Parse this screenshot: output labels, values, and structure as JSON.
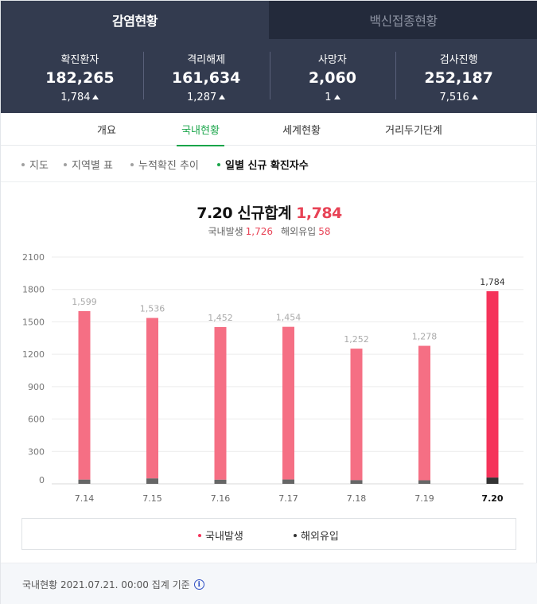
{
  "tabs": {
    "infection": "감염현황",
    "vaccine": "백신접종현황"
  },
  "stats": [
    {
      "label": "확진환자",
      "value": "182,265",
      "change": "1,784"
    },
    {
      "label": "격리해제",
      "value": "161,634",
      "change": "1,287"
    },
    {
      "label": "사망자",
      "value": "2,060",
      "change": "1"
    },
    {
      "label": "검사진행",
      "value": "252,187",
      "change": "7,516"
    }
  ],
  "subtabs": [
    "개요",
    "국내현황",
    "세계현황",
    "거리두기단계"
  ],
  "filters": [
    "지도",
    "지역별 표",
    "누적확진 추이",
    "일별 신규 확진자수"
  ],
  "summary": {
    "date": "7.20",
    "label": "신규합계",
    "total": "1,784",
    "domestic_label": "국내발생",
    "domestic": "1,726",
    "imported_label": "해외유입",
    "imported": "58"
  },
  "legend": {
    "domestic": "국내발생",
    "imported": "해외유입"
  },
  "footer": {
    "text": "국내현황 2021.07.21. 00:00 집계 기준",
    "info_icon": "i"
  },
  "colors": {
    "header_bg": "#333b4f",
    "accent_green": "#1aa54a",
    "domestic_bar": "#f56f84",
    "domestic_bar_latest": "#f5335a",
    "imported_bar": "#666666",
    "imported_bar_latest": "#333333",
    "highlight_red": "#e84356"
  },
  "chart_data": {
    "type": "bar",
    "stacked": true,
    "categories": [
      "7.14",
      "7.15",
      "7.16",
      "7.17",
      "7.18",
      "7.19",
      "7.20"
    ],
    "totals": [
      1599,
      1536,
      1452,
      1454,
      1252,
      1278,
      1784
    ],
    "series": [
      {
        "name": "국내발생",
        "values": [
          1560,
          1486,
          1414,
          1414,
          1218,
          1245,
          1726
        ]
      },
      {
        "name": "해외유입",
        "values": [
          39,
          50,
          38,
          40,
          34,
          33,
          58
        ]
      }
    ],
    "yticks": [
      0,
      300,
      600,
      900,
      1200,
      1500,
      1800,
      2100
    ],
    "ylim": [
      0,
      2100
    ],
    "grid": true,
    "legend_position": "bottom"
  }
}
